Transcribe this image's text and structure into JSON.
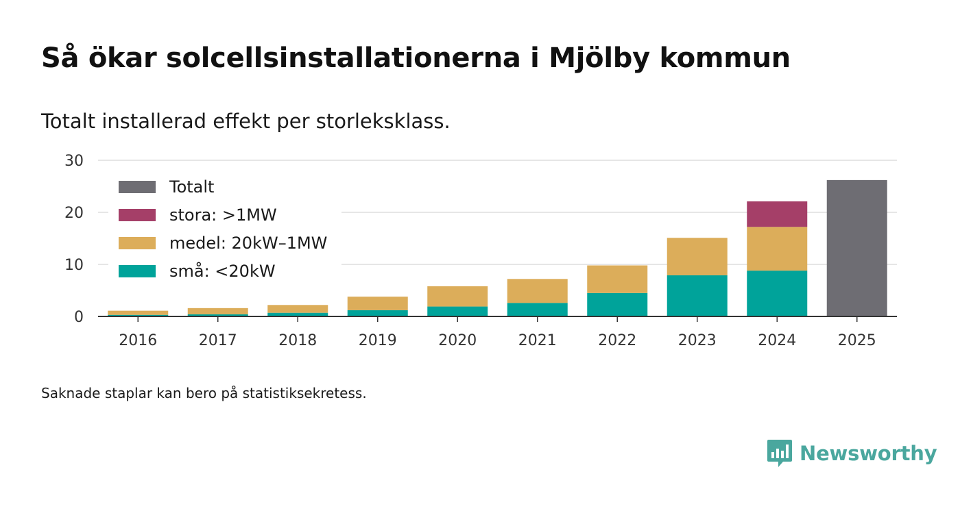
{
  "header": {
    "title": "Så ökar solcellsinstallationerna i Mjölby kommun",
    "subtitle": "Totalt installerad effekt per storleksklass."
  },
  "footer": {
    "note": "Saknade staplar kan bero på statistiksekretess.",
    "brand": "Newsworthy"
  },
  "colors": {
    "small": "#00a39a",
    "medium": "#dcad5a",
    "large": "#a53f68",
    "total": "#6e6d73",
    "grid": "#dddddd",
    "axis": "#333333"
  },
  "chart_data": {
    "type": "bar",
    "stacked": true,
    "categories": [
      "2016",
      "2017",
      "2018",
      "2019",
      "2020",
      "2021",
      "2022",
      "2023",
      "2024",
      "2025"
    ],
    "series": [
      {
        "name": "små: <20kW",
        "key": "small",
        "values": [
          0.3,
          0.4,
          0.7,
          1.2,
          1.9,
          2.6,
          4.5,
          7.9,
          8.8,
          0
        ]
      },
      {
        "name": "medel: 20kW–1MW",
        "key": "medium",
        "values": [
          0.8,
          1.2,
          1.5,
          2.6,
          3.9,
          4.6,
          5.3,
          7.2,
          8.4,
          0
        ]
      },
      {
        "name": "stora: >1MW",
        "key": "large",
        "values": [
          0,
          0,
          0,
          0,
          0,
          0,
          0,
          0,
          4.9,
          0
        ]
      },
      {
        "name": "Totalt",
        "key": "total",
        "values": [
          0,
          0,
          0,
          0,
          0,
          0,
          0,
          0,
          0,
          26.2
        ]
      }
    ],
    "legend": [
      "Totalt",
      "stora: >1MW",
      "medel: 20kW–1MW",
      "små: <20kW"
    ],
    "legend_position": "top-left",
    "ylim": [
      0,
      30
    ],
    "yticks": [
      "0",
      "10",
      "20",
      "30"
    ],
    "xlabel": "",
    "ylabel": "",
    "grid": true
  }
}
